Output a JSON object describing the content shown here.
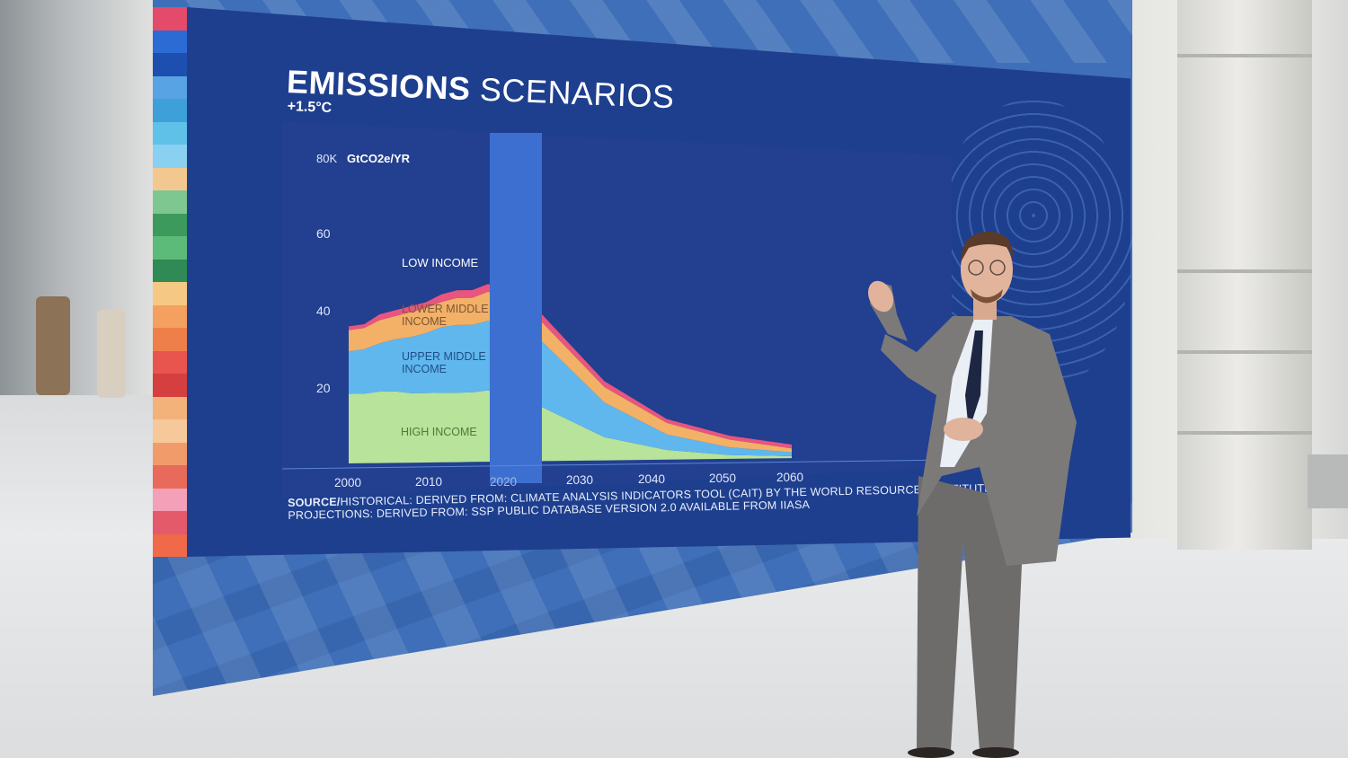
{
  "slide": {
    "title_bold": "EMISSIONS",
    "title_rest": " SCENARIOS",
    "subtitle": "+1.5°C",
    "source_label": "SOURCE/",
    "source_line1": "HISTORICAL: DERIVED FROM: CLIMATE ANALYSIS INDICATORS TOOL (CAIT) BY THE WORLD RESOURCES INSTITUTE",
    "source_line2": "PROJECTIONS: DERIVED FROM: SSP PUBLIC DATABASE VERSION 2.0 AVAILABLE FROM IIASA"
  },
  "colors": {
    "high_income": "#b7e39a",
    "upper_middle_income": "#5fb7ee",
    "lower_middle_income": "#f3b067",
    "low_income": "#e8557e",
    "divider": "#3d6fd0"
  },
  "chart_data": {
    "type": "area",
    "stacked": true,
    "ylabel": "GtCO2e/YR",
    "yticks": [
      "80K",
      "60",
      "40",
      "20"
    ],
    "ylim": [
      0,
      80
    ],
    "historical": {
      "x": [
        2000,
        2002,
        2004,
        2006,
        2008,
        2010,
        2012,
        2014,
        2016,
        2018,
        2019
      ],
      "series": [
        {
          "name": "HIGH INCOME",
          "values": [
            18,
            18,
            18.5,
            18.5,
            18,
            18,
            18,
            18,
            18,
            18.5,
            18
          ]
        },
        {
          "name": "UPPER MIDDLE INCOME",
          "values": [
            11,
            11.5,
            12.5,
            13.5,
            14.5,
            15.5,
            17,
            17.5,
            17.5,
            18,
            18
          ]
        },
        {
          "name": "LOWER MIDDLE INCOME",
          "values": [
            5.5,
            5.5,
            6,
            6,
            6.5,
            6.5,
            6.5,
            7,
            7,
            7.5,
            7.5
          ]
        },
        {
          "name": "LOW INCOME",
          "values": [
            1,
            1,
            1.5,
            1.5,
            1.5,
            1.5,
            2,
            2,
            2,
            2,
            2
          ]
        }
      ]
    },
    "projection": {
      "x": [
        2020,
        2030,
        2040,
        2050,
        2060
      ],
      "series": [
        {
          "name": "HIGH INCOME",
          "values": [
            14,
            6,
            2.5,
            1,
            0.5
          ]
        },
        {
          "name": "UPPER MIDDLE INCOME",
          "values": [
            17,
            9,
            4,
            2,
            1
          ]
        },
        {
          "name": "LOWER MIDDLE INCOME",
          "values": [
            5,
            4,
            3,
            2,
            1
          ]
        },
        {
          "name": "LOW INCOME",
          "values": [
            2,
            1.5,
            1,
            1,
            1
          ]
        }
      ]
    },
    "xticks": [
      "2000",
      "2010",
      "2020",
      "2030",
      "2040",
      "2050",
      "2060"
    ],
    "series_labels": {
      "low": "LOW INCOME",
      "lower_mid_1": "LOWER MIDDLE",
      "lower_mid_2": "INCOME",
      "upper_mid_1": "UPPER MIDDLE",
      "upper_mid_2": "INCOME",
      "high": "HIGH INCOME"
    }
  }
}
